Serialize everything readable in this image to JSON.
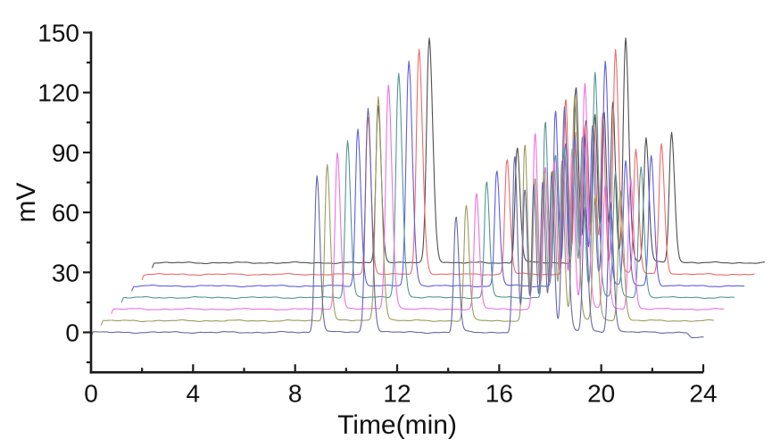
{
  "figure": {
    "background": "#ffffff",
    "description": "Overlay of seven stacked chromatograms (mV vs time) with staggered x/y offsets"
  },
  "chart_data": {
    "type": "line",
    "chart_kind": "chromatogram-overlay",
    "title": "",
    "xlabel": "Time(min)",
    "ylabel": "mV",
    "grid": false,
    "legend": "none",
    "axis_color": "#1a1a1a",
    "tick_label_color": "#111111",
    "x_axis": {
      "min": 0,
      "max": 24,
      "tick_values": [
        0,
        4,
        8,
        12,
        16,
        20,
        24
      ],
      "tick_labels": [
        "0",
        "4",
        "8",
        "12",
        "16",
        "20",
        "24"
      ],
      "minor_tick_values": [
        2,
        6,
        10,
        14,
        18,
        22
      ]
    },
    "y_axis": {
      "min": -20,
      "max": 150,
      "tick_values": [
        0,
        30,
        60,
        90,
        120,
        150
      ],
      "tick_labels": [
        "0",
        "30",
        "60",
        "90",
        "120",
        "150"
      ],
      "minor_tick_values": [
        -15,
        15,
        45,
        75,
        105,
        135
      ]
    },
    "peak_pattern_note": "each run shows the same peak pattern; t_min is retention time relative to run start, h_mv is peak height above that run baseline",
    "peak_pattern": [
      {
        "t_min": 8.85,
        "h_mv": 77,
        "sigma_min": 0.085
      },
      {
        "t_min": 10.85,
        "h_mv": 110,
        "sigma_min": 0.1
      },
      {
        "t_min": 14.3,
        "h_mv": 57,
        "sigma_min": 0.08
      },
      {
        "t_min": 16.6,
        "h_mv": 87,
        "sigma_min": 0.075
      },
      {
        "t_min": 17.0,
        "h_mv": 70,
        "sigma_min": 0.07
      },
      {
        "t_min": 17.35,
        "h_mv": 72,
        "sigma_min": 0.07
      },
      {
        "t_min": 17.7,
        "h_mv": 74,
        "sigma_min": 0.07
      },
      {
        "t_min": 18.05,
        "h_mv": 78,
        "sigma_min": 0.07
      },
      {
        "t_min": 18.55,
        "h_mv": 110,
        "sigma_min": 0.09
      },
      {
        "t_min": 19.35,
        "h_mv": 61,
        "sigma_min": 0.08
      },
      {
        "t_min": 20.35,
        "h_mv": 64,
        "sigma_min": 0.085
      }
    ],
    "run_duration_min": 24,
    "traces": [
      {
        "name": "run-1-navy",
        "color": "#6666aa",
        "x_offset_min": 0.0,
        "y_offset_mv": 0.0,
        "start_hook_mv": 2.2,
        "end_step_mv": -2.8,
        "end_step_t_min": 23.35
      },
      {
        "name": "run-2-olive",
        "color": "#9c9c5e",
        "x_offset_min": 0.4,
        "y_offset_mv": 5.8,
        "start_hook_mv": 2.2,
        "end_step_mv": 0,
        "end_step_t_min": 0
      },
      {
        "name": "run-3-magenta",
        "color": "#ec72e2",
        "x_offset_min": 0.8,
        "y_offset_mv": 11.6,
        "start_hook_mv": 2.2,
        "end_step_mv": 0,
        "end_step_t_min": 0
      },
      {
        "name": "run-4-teal",
        "color": "#549694",
        "x_offset_min": 1.2,
        "y_offset_mv": 17.4,
        "start_hook_mv": 2.2,
        "end_step_mv": 0,
        "end_step_t_min": 0
      },
      {
        "name": "run-5-blue",
        "color": "#5e5ee6",
        "x_offset_min": 1.6,
        "y_offset_mv": 23.2,
        "start_hook_mv": 2.2,
        "end_step_mv": 0,
        "end_step_t_min": 0
      },
      {
        "name": "run-6-red",
        "color": "#f06a6a",
        "x_offset_min": 2.0,
        "y_offset_mv": 29.0,
        "start_hook_mv": 2.2,
        "end_step_mv": 0,
        "end_step_t_min": 0
      },
      {
        "name": "run-7-black",
        "color": "#4f4f4f",
        "x_offset_min": 2.4,
        "y_offset_mv": 34.8,
        "start_hook_mv": 2.2,
        "end_step_mv": 0,
        "end_step_t_min": 0
      }
    ]
  }
}
